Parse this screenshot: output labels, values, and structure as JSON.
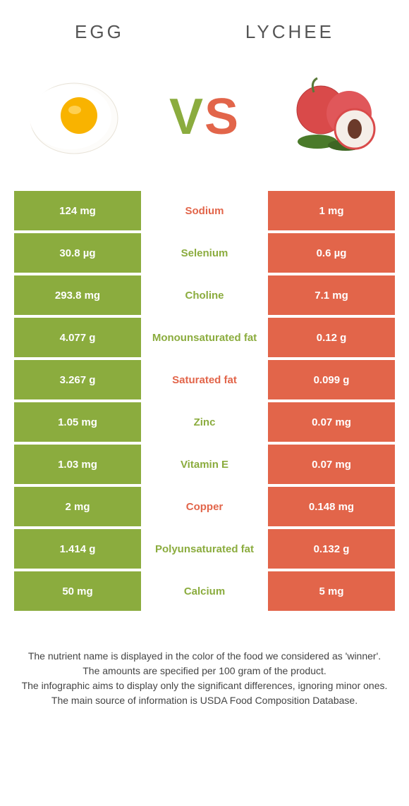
{
  "header": {
    "left_title": "Egg",
    "right_title": "Lychee"
  },
  "vs": {
    "v": "V",
    "s": "S"
  },
  "colors": {
    "green": "#8bac3e",
    "orange": "#e2654a",
    "white": "#ffffff"
  },
  "rows": [
    {
      "left": "124 mg",
      "label": "Sodium",
      "right": "1 mg",
      "winner": "orange"
    },
    {
      "left": "30.8 µg",
      "label": "Selenium",
      "right": "0.6 µg",
      "winner": "green"
    },
    {
      "left": "293.8 mg",
      "label": "Choline",
      "right": "7.1 mg",
      "winner": "green"
    },
    {
      "left": "4.077 g",
      "label": "Monounsaturated fat",
      "right": "0.12 g",
      "winner": "green"
    },
    {
      "left": "3.267 g",
      "label": "Saturated fat",
      "right": "0.099 g",
      "winner": "orange"
    },
    {
      "left": "1.05 mg",
      "label": "Zinc",
      "right": "0.07 mg",
      "winner": "green"
    },
    {
      "left": "1.03 mg",
      "label": "Vitamin E",
      "right": "0.07 mg",
      "winner": "green"
    },
    {
      "left": "2 mg",
      "label": "Copper",
      "right": "0.148 mg",
      "winner": "orange"
    },
    {
      "left": "1.414 g",
      "label": "Polyunsaturated fat",
      "right": "0.132 g",
      "winner": "green"
    },
    {
      "left": "50 mg",
      "label": "Calcium",
      "right": "5 mg",
      "winner": "green"
    }
  ],
  "footer": {
    "line1": "The nutrient name is displayed in the color of the food we considered as 'winner'.",
    "line2": "The amounts are specified per 100 gram of the product.",
    "line3": "The infographic aims to display only the significant differences, ignoring minor ones.",
    "line4": "The main source of information is USDA Food Composition Database."
  }
}
